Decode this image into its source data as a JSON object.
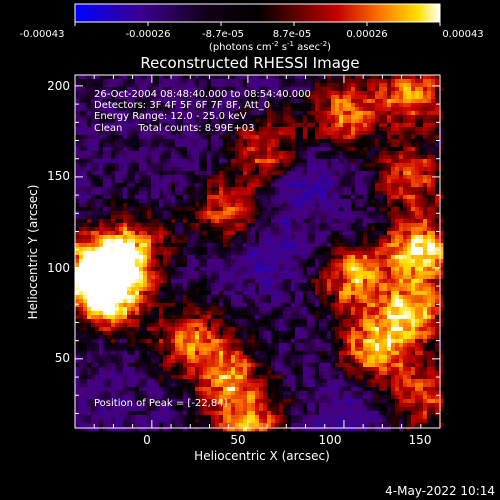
{
  "colorbar": {
    "ticks": [
      "-0.00043",
      "-0.00026",
      "-8.7e-05",
      "8.7e-05",
      "0.00026",
      "0.00043"
    ],
    "units_prefix": "(photons cm",
    "units_exp1": "-2",
    "units_mid": " s",
    "units_exp2": "-1",
    "units_suffix": " asec",
    "units_exp3": "-2",
    "units_close": ")"
  },
  "chart_data": {
    "type": "heatmap",
    "title": "Reconstructed RHESSI Image",
    "xlabel": "Heliocentric X (arcsec)",
    "ylabel": "Heliocentric Y (arcsec)",
    "xlim": [
      -40,
      150
    ],
    "ylim": [
      12,
      206
    ],
    "x_ticks": [
      0,
      50,
      100,
      150
    ],
    "y_ticks": [
      50,
      100,
      150,
      200
    ],
    "value_range": [
      -0.00043,
      0.00043
    ],
    "colormap": "black-purple-red-orange-yellow-white",
    "annotations": [
      "26-Oct-2004 08:48:40.000 to 08:54:40.000",
      "Detectors: 3F 4F 5F 6F 7F 8F, Att_0",
      "Energy Range: 12.0 - 25.0 keV",
      "Clean     Total counts: 8.99E+03"
    ],
    "peak_label": "Position of Peak = [-22,84]",
    "peak": [
      -22,
      84
    ],
    "bright_regions": [
      {
        "x": -30,
        "y": 100,
        "level": 0.0004
      },
      {
        "x": -22,
        "y": 84,
        "level": 0.00043
      },
      {
        "x": -10,
        "y": 110,
        "level": 0.0003
      },
      {
        "x": 20,
        "y": 60,
        "level": 0.00028
      },
      {
        "x": 40,
        "y": 40,
        "level": 0.00025
      },
      {
        "x": 50,
        "y": 15,
        "level": 0.0003
      },
      {
        "x": 40,
        "y": 130,
        "level": 0.00026
      },
      {
        "x": 60,
        "y": 165,
        "level": 0.00022
      },
      {
        "x": 100,
        "y": 185,
        "level": 0.00028
      },
      {
        "x": 135,
        "y": 195,
        "level": 0.0003
      },
      {
        "x": 105,
        "y": 95,
        "level": 0.00032
      },
      {
        "x": 140,
        "y": 110,
        "level": 0.00042
      },
      {
        "x": 135,
        "y": 75,
        "level": 0.00035
      },
      {
        "x": 115,
        "y": 55,
        "level": 0.0003
      },
      {
        "x": 135,
        "y": 150,
        "level": 0.00025
      },
      {
        "x": 140,
        "y": 30,
        "level": 0.00022
      }
    ],
    "dim_regions": [
      {
        "x": 60,
        "y": 110,
        "level": -0.0003
      },
      {
        "x": 80,
        "y": 145,
        "level": -0.0003
      },
      {
        "x": 100,
        "y": 20,
        "level": -0.00028
      },
      {
        "x": -20,
        "y": 20,
        "level": -0.0002
      }
    ]
  },
  "footer": {
    "date": "4-May-2022 10:14"
  }
}
